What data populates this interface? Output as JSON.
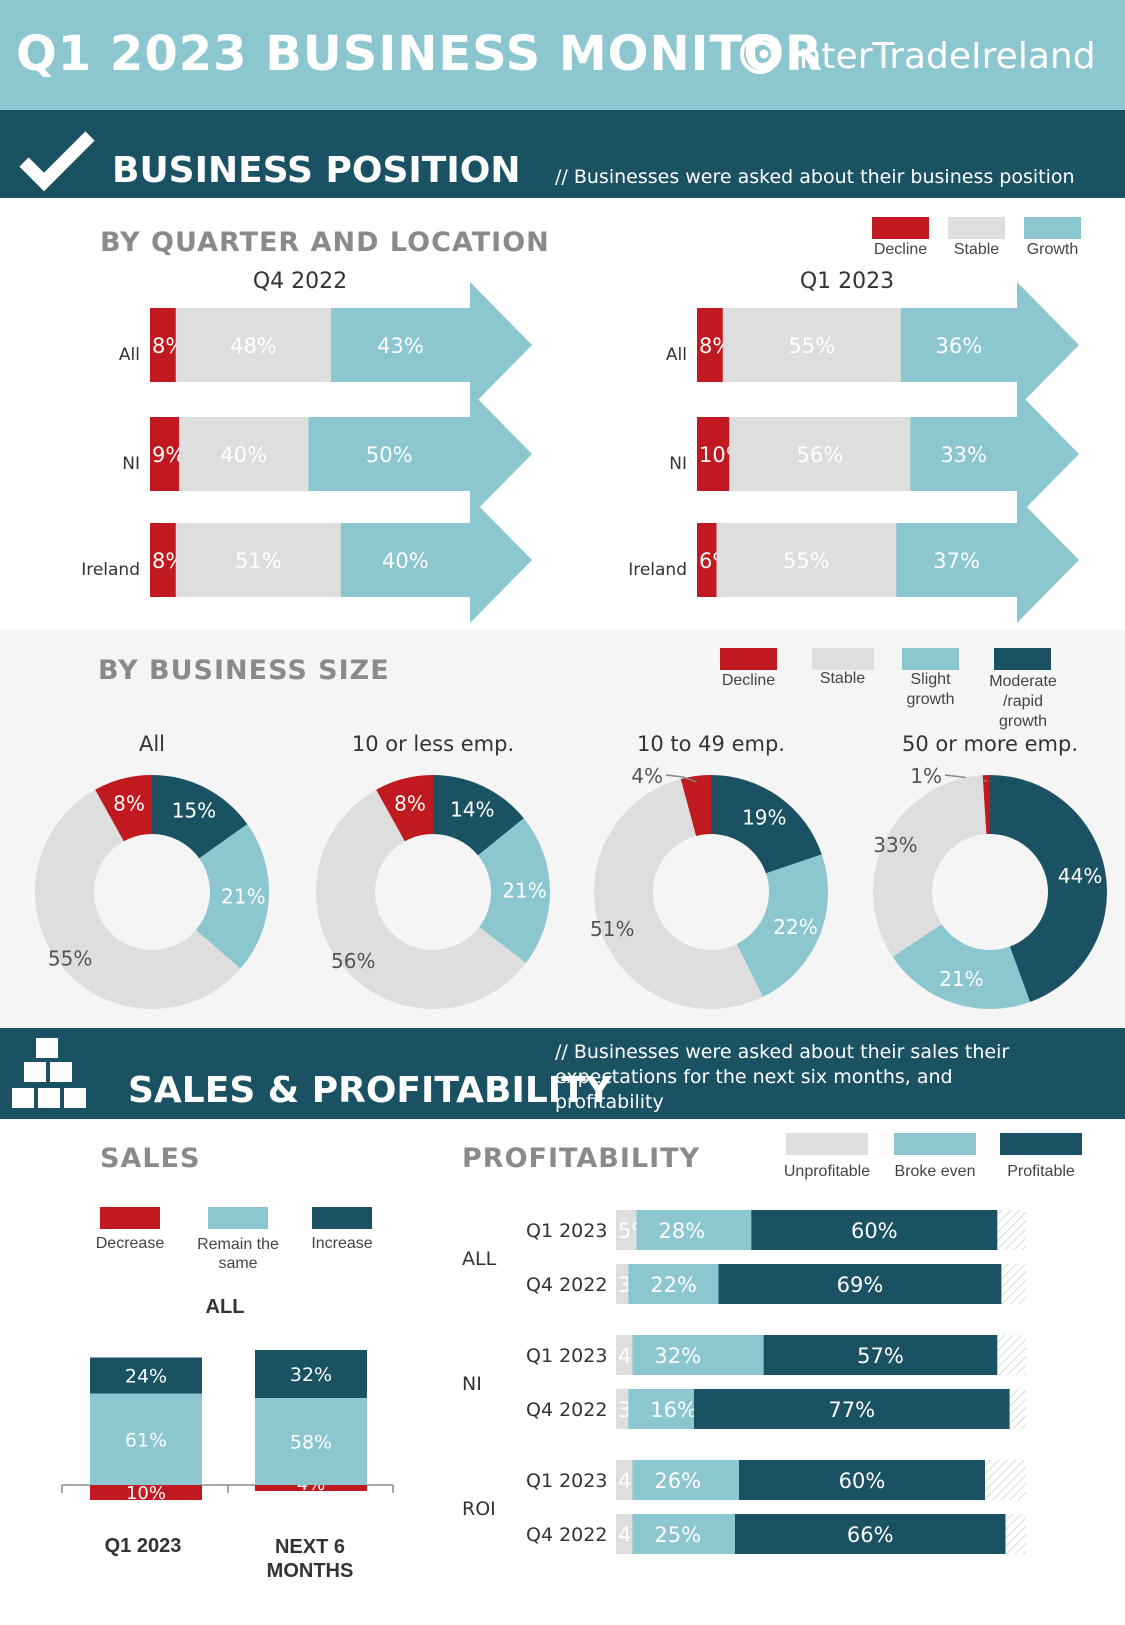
{
  "header": {
    "title": "Q1 2023 BUSINESS MONITOR",
    "logo_text": "InterTradeIreland"
  },
  "business_position": {
    "title": "BUSINESS POSITION",
    "note": "// Businesses were asked about their business position",
    "by_quarter_heading": "BY QUARTER AND LOCATION",
    "by_size_heading": "BY BUSINESS SIZE"
  },
  "sales_profitability": {
    "title": "SALES & PROFITABILITY",
    "note": "// Businesses were asked about their sales their expectations for the next six months, and profitability",
    "sales_heading": "SALES",
    "profitability_heading": "PROFITABILITY"
  },
  "colors": {
    "decline": "#c0191f",
    "stable": "#dedede",
    "growth": "#8cc6cf",
    "dark": "#1b5263",
    "teal_banner": "#8cc6cf"
  },
  "chart_data": [
    {
      "type": "bar",
      "orientation": "horizontal-stacked",
      "title": "Q4 2022",
      "categories": [
        "All",
        "NI",
        "Ireland"
      ],
      "series": [
        {
          "name": "Decline",
          "values": [
            8,
            9,
            8
          ]
        },
        {
          "name": "Stable",
          "values": [
            48,
            40,
            51
          ]
        },
        {
          "name": "Growth",
          "values": [
            43,
            50,
            40
          ]
        }
      ],
      "legend": [
        "Decline",
        "Stable",
        "Growth"
      ],
      "legend_position": "top-right"
    },
    {
      "type": "bar",
      "orientation": "horizontal-stacked",
      "title": "Q1 2023",
      "categories": [
        "All",
        "NI",
        "Ireland"
      ],
      "series": [
        {
          "name": "Decline",
          "values": [
            8,
            10,
            6
          ]
        },
        {
          "name": "Stable",
          "values": [
            55,
            56,
            55
          ]
        },
        {
          "name": "Growth",
          "values": [
            36,
            33,
            37
          ]
        }
      ]
    },
    {
      "type": "pie",
      "style": "donut",
      "legend": [
        "Decline",
        "Stable",
        "Slight growth",
        "Moderate /rapid growth"
      ],
      "legend_position": "top-right",
      "charts": [
        {
          "title": "All",
          "values": {
            "decline": 8,
            "moderate": 15,
            "slight": 21,
            "stable": 55
          }
        },
        {
          "title": "10 or less emp.",
          "values": {
            "decline": 8,
            "moderate": 14,
            "slight": 21,
            "stable": 56
          }
        },
        {
          "title": "10 to 49 emp.",
          "values": {
            "decline": 4,
            "moderate": 19,
            "slight": 22,
            "stable": 51
          }
        },
        {
          "title": "50 or more emp.",
          "values": {
            "decline": 1,
            "moderate": 44,
            "slight": 21,
            "stable": 33
          }
        }
      ]
    },
    {
      "type": "bar",
      "orientation": "vertical-stacked",
      "title": "ALL",
      "categories": [
        "Q1 2023",
        "NEXT 6 MONTHS"
      ],
      "series": [
        {
          "name": "Decrease",
          "values": [
            10,
            4
          ]
        },
        {
          "name": "Remain the same",
          "values": [
            61,
            58
          ]
        },
        {
          "name": "Increase",
          "values": [
            24,
            32
          ]
        }
      ],
      "legend": [
        "Decrease",
        "Remain the same",
        "Increase"
      ]
    },
    {
      "type": "bar",
      "orientation": "horizontal-stacked",
      "legend": [
        "Unprofitable",
        "Broke even",
        "Profitable"
      ],
      "legend_position": "top-right",
      "groups": [
        {
          "label": "ALL",
          "rows": [
            {
              "period": "Q1 2023",
              "values": [
                5,
                28,
                60
              ]
            },
            {
              "period": "Q4 2022",
              "values": [
                3,
                22,
                69
              ]
            }
          ]
        },
        {
          "label": "NI",
          "rows": [
            {
              "period": "Q1 2023",
              "values": [
                4,
                32,
                57
              ]
            },
            {
              "period": "Q4 2022",
              "values": [
                3,
                16,
                77
              ]
            }
          ]
        },
        {
          "label": "ROI",
          "rows": [
            {
              "period": "Q1 2023",
              "values": [
                4,
                26,
                60
              ]
            },
            {
              "period": "Q4 2022",
              "values": [
                4,
                25,
                66
              ]
            }
          ]
        }
      ]
    }
  ]
}
